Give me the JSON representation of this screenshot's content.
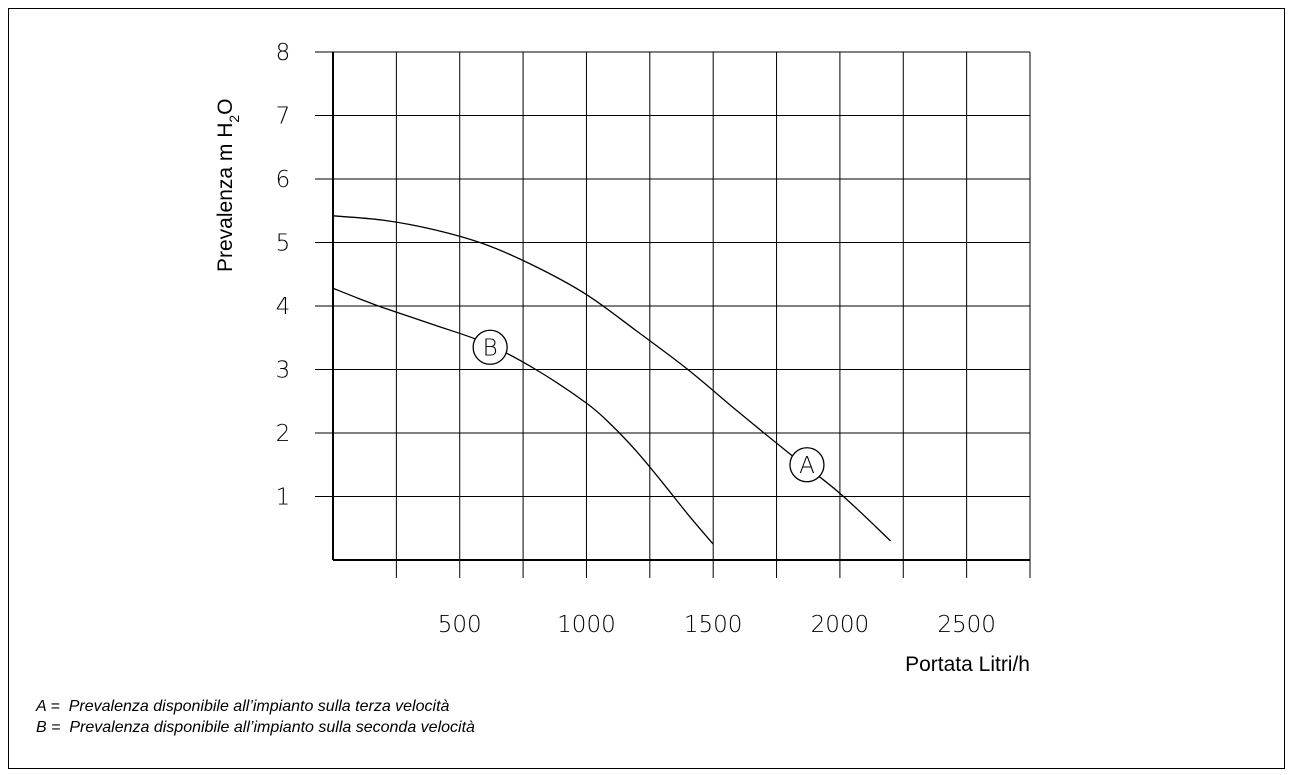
{
  "chart_data": {
    "type": "line",
    "title": "",
    "xlabel": "Portata Litri/h",
    "ylabel_main": "Prevalenza m H",
    "ylabel_sub": "2",
    "ylabel_end": "O",
    "xlim": [
      0,
      2750
    ],
    "ylim": [
      0,
      8
    ],
    "x_ticks": [
      500,
      1000,
      1500,
      2000,
      2500
    ],
    "x_tick_labels": [
      "500",
      "1000",
      "1500",
      "2000",
      "2500"
    ],
    "y_ticks": [
      1,
      2,
      3,
      4,
      5,
      6,
      7,
      8
    ],
    "y_tick_labels": [
      "1",
      "2",
      "3",
      "4",
      "5",
      "6",
      "7",
      "8"
    ],
    "grid": true,
    "series": [
      {
        "name": "A",
        "label_at": [
          1870,
          1.5
        ],
        "x": [
          0,
          200,
          400,
          600,
          800,
          1000,
          1200,
          1400,
          1600,
          1800,
          2000,
          2200
        ],
        "y": [
          5.42,
          5.35,
          5.2,
          4.97,
          4.62,
          4.18,
          3.6,
          3.0,
          2.33,
          1.68,
          1.05,
          0.3
        ]
      },
      {
        "name": "B",
        "label_at": [
          620,
          3.35
        ],
        "x": [
          0,
          100,
          200,
          400,
          600,
          800,
          1000,
          1100,
          1200,
          1300,
          1400,
          1500
        ],
        "y": [
          4.28,
          4.12,
          3.97,
          3.7,
          3.42,
          3.0,
          2.47,
          2.12,
          1.7,
          1.22,
          0.72,
          0.25
        ]
      }
    ],
    "legend_entries": [
      "A =  Prevalenza disponibile all’impianto sulla terza velocità",
      "B =  Prevalenza disponibile all’impianto sulla seconda velocità"
    ]
  }
}
